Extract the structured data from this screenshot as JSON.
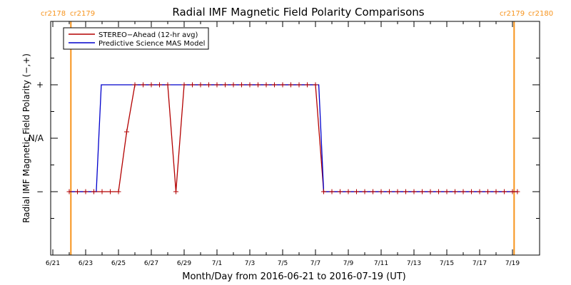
{
  "chart_data": {
    "type": "line",
    "title": "Radial IMF Magnetic Field Polarity Comparisons",
    "xlabel": "Month/Day from 2016-06-21 to 2016-07-19 (UT)",
    "ylabel": "Radial IMF Magnetic Field Polarity (−,+)",
    "x_range_days": [
      0,
      28.5
    ],
    "x_ticks": [
      {
        "day": 0,
        "label": "6/21"
      },
      {
        "day": 2,
        "label": "6/23"
      },
      {
        "day": 4,
        "label": "6/25"
      },
      {
        "day": 6,
        "label": "6/27"
      },
      {
        "day": 8,
        "label": "6/29"
      },
      {
        "day": 10,
        "label": "7/1"
      },
      {
        "day": 12,
        "label": "7/3"
      },
      {
        "day": 14,
        "label": "7/5"
      },
      {
        "day": 16,
        "label": "7/7"
      },
      {
        "day": 18,
        "label": "7/9"
      },
      {
        "day": 20,
        "label": "7/11"
      },
      {
        "day": 22,
        "label": "7/13"
      },
      {
        "day": 24,
        "label": "7/15"
      },
      {
        "day": 26,
        "label": "7/17"
      },
      {
        "day": 28,
        "label": "7/19"
      }
    ],
    "y_range": [
      -1.5,
      1.5
    ],
    "y_ticks": [
      {
        "value": 1,
        "label": "+"
      },
      {
        "value": 0,
        "label": "N/A"
      },
      {
        "value": -1,
        "label": "−"
      }
    ],
    "carrington_markers": [
      {
        "day": 1.1,
        "left_label": "cr2178",
        "right_label": "cr2179"
      },
      {
        "day": 28.1,
        "left_label": "cr2179",
        "right_label": "cr2180"
      }
    ],
    "legend": {
      "placement": "top-left"
    },
    "series": [
      {
        "name": "STEREO−Ahead (12-hr avg)",
        "color": "#b30000",
        "markers": true,
        "points": [
          [
            1.0,
            -1
          ],
          [
            1.5,
            -1
          ],
          [
            2.0,
            -1
          ],
          [
            2.5,
            -1
          ],
          [
            3.0,
            -1
          ],
          [
            3.5,
            -1
          ],
          [
            4.0,
            -1
          ],
          [
            4.5,
            0.12
          ],
          [
            5.0,
            1
          ],
          [
            5.5,
            1
          ],
          [
            6.0,
            1
          ],
          [
            6.5,
            1
          ],
          [
            7.0,
            1
          ],
          [
            7.5,
            -1
          ],
          [
            8.0,
            1
          ],
          [
            8.5,
            1
          ],
          [
            9.0,
            1
          ],
          [
            9.5,
            1
          ],
          [
            10.0,
            1
          ],
          [
            10.5,
            1
          ],
          [
            11.0,
            1
          ],
          [
            11.5,
            1
          ],
          [
            12.0,
            1
          ],
          [
            12.5,
            1
          ],
          [
            13.0,
            1
          ],
          [
            13.5,
            1
          ],
          [
            14.0,
            1
          ],
          [
            14.5,
            1
          ],
          [
            15.0,
            1
          ],
          [
            15.5,
            1
          ],
          [
            16.0,
            1
          ],
          [
            16.5,
            -1
          ],
          [
            17.0,
            -1
          ],
          [
            17.5,
            -1
          ],
          [
            18.0,
            -1
          ],
          [
            18.5,
            -1
          ],
          [
            19.0,
            -1
          ],
          [
            19.5,
            -1
          ],
          [
            20.0,
            -1
          ],
          [
            20.5,
            -1
          ],
          [
            21.0,
            -1
          ],
          [
            21.5,
            -1
          ],
          [
            22.0,
            -1
          ],
          [
            22.5,
            -1
          ],
          [
            23.0,
            -1
          ],
          [
            23.5,
            -1
          ],
          [
            24.0,
            -1
          ],
          [
            24.5,
            -1
          ],
          [
            25.0,
            -1
          ],
          [
            25.5,
            -1
          ],
          [
            26.0,
            -1
          ],
          [
            26.5,
            -1
          ],
          [
            27.0,
            -1
          ],
          [
            27.5,
            -1
          ],
          [
            28.0,
            -1
          ],
          [
            28.3,
            -1
          ]
        ]
      },
      {
        "name": "Predictive Science MAS Model",
        "color": "#0000cc",
        "markers": false,
        "points": [
          [
            1.0,
            -1
          ],
          [
            2.65,
            -1
          ],
          [
            2.95,
            1
          ],
          [
            16.2,
            1
          ],
          [
            16.5,
            -1
          ],
          [
            28.3,
            -1
          ]
        ]
      }
    ]
  }
}
